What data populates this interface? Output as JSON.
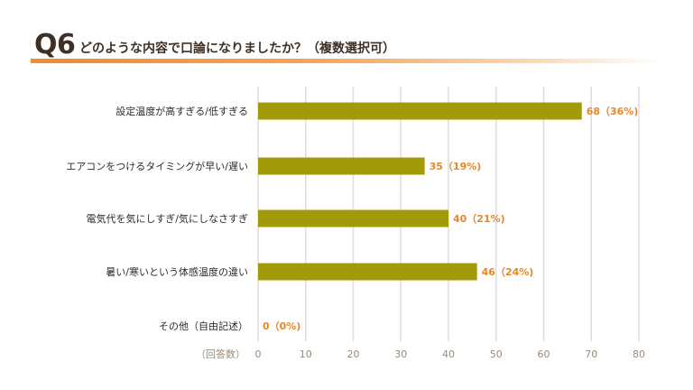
{
  "header": {
    "q_number": "Q6",
    "question": "どのような内容で口論になりましたか？（複数選択可）"
  },
  "colors": {
    "bar": "#a39a0a",
    "value_label": "#e8872a",
    "accent": "#f08c2a",
    "grid": "#dedede"
  },
  "chart_data": {
    "type": "bar",
    "orientation": "horizontal",
    "categories": [
      "設定温度が高すぎる/低すぎる",
      "エアコンをつけるタイミングが早い/遅い",
      "電気代を気にしすぎ/気にしなさすぎ",
      "暑い/寒いという体感温度の違い",
      "その他（自由記述）"
    ],
    "values": [
      68,
      35,
      40,
      46,
      0
    ],
    "value_labels": [
      "68（36%)",
      "35（19%)",
      "40（21%)",
      "46（24%)",
      "0（0%)"
    ],
    "xlabel": "（回答数）",
    "xlim": [
      0,
      80
    ],
    "xticks": [
      0,
      10,
      20,
      30,
      40,
      50,
      60,
      70,
      80
    ],
    "grid": true
  }
}
